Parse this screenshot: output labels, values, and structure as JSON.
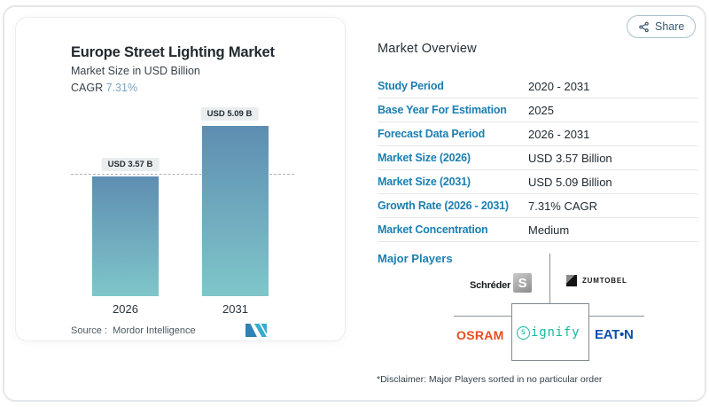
{
  "share": {
    "label": "Share"
  },
  "chart_card": {
    "title": "Europe Street Lighting Market",
    "subtitle": "Market Size in USD Billion",
    "cagr_label": "CAGR",
    "cagr_value": "7.31%",
    "source_label": "Source :",
    "source_value": "Mordor Intelligence"
  },
  "chart_data": {
    "type": "bar",
    "title": "Europe Street Lighting Market",
    "subtitle": "Market Size in USD Billion",
    "cagr": "7.31%",
    "categories": [
      "2026",
      "2031"
    ],
    "values": [
      3.57,
      5.09
    ],
    "value_labels": [
      "USD 3.57 B",
      "USD 5.09 B"
    ],
    "reference_line": 3.57,
    "bar_gradient_top": "#5e8db1",
    "bar_gradient_bottom": "#7fc6ca"
  },
  "overview": {
    "title": "Market Overview",
    "rows": [
      {
        "label": "Study Period",
        "value": "2020 - 2031"
      },
      {
        "label": "Base Year For Estimation",
        "value": "2025"
      },
      {
        "label": "Forecast Data Period",
        "value": "2026 - 2031"
      },
      {
        "label": "Market Size (2026)",
        "value": "USD 3.57 Billion"
      },
      {
        "label": "Market Size (2031)",
        "value": "USD 5.09 Billion"
      },
      {
        "label": "Growth Rate (2026 - 2031)",
        "value": "7.31% CAGR"
      },
      {
        "label": "Market Concentration",
        "value": "Medium"
      }
    ],
    "major_players_label": "Major Players",
    "players": {
      "schreder": "Schréder",
      "schreder_icon": "S",
      "zumtobel": "ZUMTOBEL",
      "osram": "OSRAM",
      "signify_icon": "s",
      "signify": "ignify",
      "eaton": "EAT•N"
    },
    "disclaimer": "*Disclaimer: Major Players sorted in no particular order"
  }
}
